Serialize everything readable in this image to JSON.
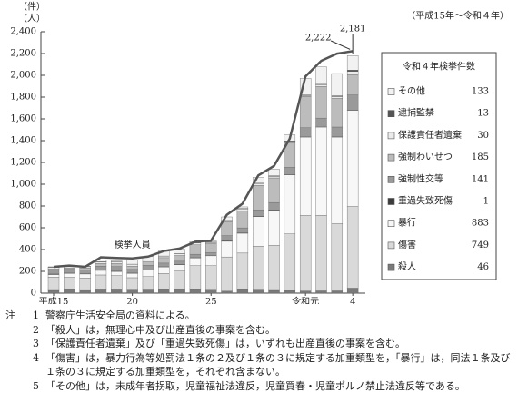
{
  "chart_data": {
    "type": "stacked-bar-line",
    "y_unit_labels": [
      "（件）",
      "（人）"
    ],
    "period": "（平成15年～令和４年）",
    "categories": [
      "平成15",
      null,
      null,
      null,
      null,
      "20",
      null,
      null,
      null,
      null,
      "25",
      null,
      null,
      null,
      null,
      null,
      "令和元",
      null,
      null,
      "4"
    ],
    "ylim": [
      0,
      2400
    ],
    "yticks": [
      0,
      200,
      400,
      600,
      800,
      {
        "value": 1000,
        "label": "1,000"
      },
      {
        "value": 1200,
        "label": "1,200"
      },
      {
        "value": 1400,
        "label": "1,400"
      },
      {
        "value": 1600,
        "label": "1,600"
      },
      {
        "value": 1800,
        "label": "1,800"
      },
      {
        "value": 2000,
        "label": "2,000"
      },
      {
        "value": 2200,
        "label": "2,200"
      },
      {
        "value": 2400,
        "label": "2,400"
      }
    ],
    "legend_title": "令和４年検挙件数",
    "series": [
      {
        "name": "殺人",
        "color": "#7a7a7a",
        "values": [
          25,
          31,
          24,
          30,
          30,
          28,
          29,
          33,
          31,
          32,
          27,
          19,
          34,
          28,
          25,
          23,
          20,
          21,
          21,
          46
        ]
      },
      {
        "name": "傷害",
        "color": "#d9d9d9",
        "values": [
          122,
          114,
          116,
          137,
          131,
          114,
          123,
          147,
          177,
          220,
          225,
          313,
          334,
          402,
          415,
          521,
          694,
          692,
          616,
          749
        ]
      },
      {
        "name": "暴行",
        "color": "#f7f7f7",
        "values": [
          24,
          36,
          36,
          42,
          38,
          40,
          60,
          61,
          53,
          71,
          91,
          144,
          182,
          273,
          321,
          542,
          719,
          812,
          796,
          883
        ]
      },
      {
        "name": "重過失致死傷",
        "color": "#3c3c3c",
        "values": [
          5,
          4,
          3,
          5,
          4,
          3,
          3,
          2,
          3,
          3,
          2,
          6,
          4,
          3,
          3,
          2,
          2,
          1,
          3,
          1
        ]
      },
      {
        "name": "強制性交等",
        "color": "#9a9a9a",
        "values": [
          34,
          34,
          33,
          34,
          41,
          33,
          41,
          33,
          29,
          31,
          26,
          46,
          45,
          59,
          68,
          68,
          84,
          81,
          89,
          141
        ]
      },
      {
        "name": "強制わいせつ",
        "color": "#bcbcbc",
        "values": [
          12,
          13,
          19,
          25,
          27,
          29,
          31,
          50,
          52,
          87,
          83,
          129,
          153,
          224,
          226,
          226,
          286,
          291,
          263,
          185
        ]
      },
      {
        "name": "保護責任者遺棄",
        "color": "#ebebeb",
        "values": [
          15,
          13,
          12,
          14,
          15,
          18,
          16,
          14,
          18,
          17,
          11,
          10,
          22,
          18,
          14,
          12,
          9,
          16,
          17,
          30
        ]
      },
      {
        "name": "逮捕監禁",
        "color": "#555555",
        "values": [
          1,
          2,
          2,
          2,
          1,
          1,
          2,
          1,
          2,
          3,
          3,
          1,
          4,
          3,
          6,
          4,
          6,
          4,
          7,
          13
        ]
      },
      {
        "name": "その他",
        "color": "#f2f2f2",
        "values": [
          4,
          2,
          2,
          13,
          9,
          40,
          30,
          45,
          37,
          9,
          11,
          32,
          14,
          53,
          60,
          56,
          152,
          160,
          204,
          133
        ]
      }
    ],
    "line": {
      "name": "検挙人員",
      "color": "#555555",
      "values": [
        242,
        253,
        242,
        329,
        323,
        319,
        335,
        387,
        409,
        472,
        482,
        719,
        822,
        1081,
        1168,
        1419,
        1990,
        2133,
        2199,
        2222
      ],
      "value_labels": [
        null,
        null,
        null,
        null,
        null,
        null,
        null,
        null,
        null,
        null,
        null,
        null,
        null,
        null,
        null,
        null,
        null,
        null,
        null,
        "2,222"
      ]
    },
    "annotations": [
      "2,181"
    ]
  },
  "notes": {
    "label": "注",
    "items": [
      {
        "num": "1",
        "text": "警察庁生活安全局の資料による。"
      },
      {
        "num": "2",
        "text": "「殺人」は，無理心中及び出産直後の事案を含む。"
      },
      {
        "num": "3",
        "text": "「保護責任者遺棄」及び「重過失致死傷」は，いずれも出産直後の事案を含む。"
      },
      {
        "num": "4",
        "text": "「傷害」は，暴力行為等処罰法１条の２及び１条の３に規定する加重類型を，「暴行」は，同法１条及び１条の３に規定する加重類型を，それぞれ含まない。"
      },
      {
        "num": "5",
        "text": "「その他」は，未成年者拐取，児童福祉法違反，児童買春・児童ポルノ禁止法違反等である。"
      }
    ]
  }
}
